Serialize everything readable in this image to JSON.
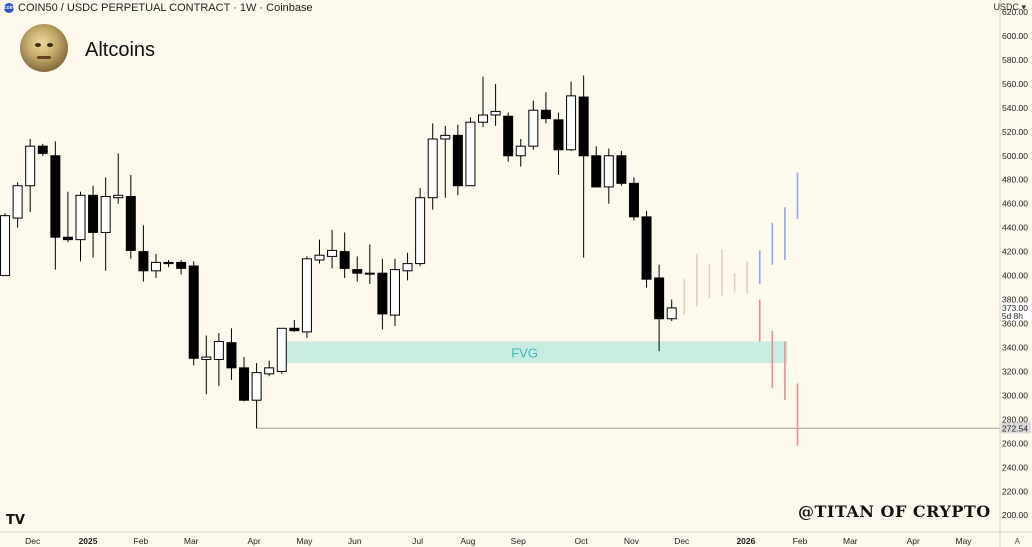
{
  "header": {
    "badge_text": "coin",
    "title": "COIN50 / USDC PERPETUAL CONTRACT · 1W · Coinbase"
  },
  "legend": {
    "group_title": "Altcoins"
  },
  "currency": "USDC",
  "watermark": "@TITAN OF CRYPTO",
  "tv_logo": "TV",
  "auto_label": "A",
  "colors": {
    "background": "#fdf9ec",
    "candle_up_fill": "#ffffff",
    "candle_down_fill": "#000000",
    "candle_border": "#000000",
    "fvg_fill": "#c8ece2",
    "fvg_text": "#3ab8bc",
    "projection_up": "#8fa6e8",
    "projection_down": "#e89090",
    "projection_neutral": "#e0cfc0",
    "support_line": "#999999",
    "current_price_bg": "#ffffff"
  },
  "chart_data": {
    "type": "candlestick",
    "title": "COIN50 / USDC PERPETUAL CONTRACT · 1W · Coinbase",
    "ylabel": "USDC",
    "ylim": [
      186,
      630
    ],
    "y_ticks": [
      200,
      220,
      240,
      260,
      280,
      300,
      320,
      340,
      360,
      380,
      400,
      420,
      440,
      460,
      480,
      500,
      520,
      540,
      560,
      580,
      600,
      620
    ],
    "x_range_weeks": [
      -2,
      77.5
    ],
    "month_labels": [
      {
        "label": "Dec",
        "week": 0.6
      },
      {
        "label": "2025",
        "week": 5.0
      },
      {
        "label": "Feb",
        "week": 9.2
      },
      {
        "label": "Mar",
        "week": 13.2
      },
      {
        "label": "Apr",
        "week": 18.2
      },
      {
        "label": "May",
        "week": 22.2
      },
      {
        "label": "Jun",
        "week": 26.2
      },
      {
        "label": "Jul",
        "week": 31.2
      },
      {
        "label": "Aug",
        "week": 35.2
      },
      {
        "label": "Sep",
        "week": 39.2
      },
      {
        "label": "Oct",
        "week": 44.2
      },
      {
        "label": "Nov",
        "week": 48.2
      },
      {
        "label": "Dec",
        "week": 52.2
      },
      {
        "label": "2026",
        "week": 57.3
      },
      {
        "label": "Feb",
        "week": 61.6
      },
      {
        "label": "Mar",
        "week": 65.6
      },
      {
        "label": "Apr",
        "week": 70.6
      },
      {
        "label": "May",
        "week": 74.6
      }
    ],
    "candles": [
      {
        "w": -1.6,
        "o": 400,
        "h": 452,
        "l": 400,
        "c": 450
      },
      {
        "w": -0.6,
        "o": 448,
        "h": 478,
        "l": 440,
        "c": 475
      },
      {
        "w": 0.4,
        "o": 475,
        "h": 514,
        "l": 453,
        "c": 508
      },
      {
        "w": 1.4,
        "o": 508,
        "h": 510,
        "l": 500,
        "c": 502
      },
      {
        "w": 2.4,
        "o": 500,
        "h": 512,
        "l": 405,
        "c": 432
      },
      {
        "w": 3.4,
        "o": 432,
        "h": 470,
        "l": 428,
        "c": 430
      },
      {
        "w": 4.4,
        "o": 430,
        "h": 470,
        "l": 412,
        "c": 467
      },
      {
        "w": 5.4,
        "o": 467,
        "h": 475,
        "l": 415,
        "c": 436
      },
      {
        "w": 6.4,
        "o": 436,
        "h": 482,
        "l": 404,
        "c": 466
      },
      {
        "w": 7.4,
        "o": 465,
        "h": 502,
        "l": 460,
        "c": 467
      },
      {
        "w": 8.4,
        "o": 466,
        "h": 484,
        "l": 414,
        "c": 421
      },
      {
        "w": 9.4,
        "o": 420,
        "h": 442,
        "l": 395,
        "c": 404
      },
      {
        "w": 10.4,
        "o": 404,
        "h": 418,
        "l": 398,
        "c": 411
      },
      {
        "w": 11.4,
        "o": 411,
        "h": 413,
        "l": 407,
        "c": 410
      },
      {
        "w": 12.4,
        "o": 411,
        "h": 413,
        "l": 401,
        "c": 406
      },
      {
        "w": 13.4,
        "o": 408,
        "h": 412,
        "l": 325,
        "c": 331
      },
      {
        "w": 14.4,
        "o": 330,
        "h": 350,
        "l": 301,
        "c": 332
      },
      {
        "w": 15.4,
        "o": 330,
        "h": 352,
        "l": 308,
        "c": 345
      },
      {
        "w": 16.4,
        "o": 344,
        "h": 356,
        "l": 313,
        "c": 323
      },
      {
        "w": 17.4,
        "o": 323,
        "h": 332,
        "l": 295,
        "c": 296
      },
      {
        "w": 18.4,
        "o": 296,
        "h": 327,
        "l": 272.54,
        "c": 319
      },
      {
        "w": 19.4,
        "o": 318,
        "h": 329,
        "l": 316,
        "c": 323
      },
      {
        "w": 20.4,
        "o": 320,
        "h": 356,
        "l": 318,
        "c": 356
      },
      {
        "w": 21.4,
        "o": 356,
        "h": 363,
        "l": 353,
        "c": 354
      },
      {
        "w": 22.4,
        "o": 353,
        "h": 416,
        "l": 348,
        "c": 414
      },
      {
        "w": 23.4,
        "o": 413,
        "h": 430,
        "l": 410,
        "c": 417
      },
      {
        "w": 24.4,
        "o": 416,
        "h": 438,
        "l": 406,
        "c": 421
      },
      {
        "w": 25.4,
        "o": 420,
        "h": 436,
        "l": 398,
        "c": 406
      },
      {
        "w": 26.4,
        "o": 405,
        "h": 416,
        "l": 395,
        "c": 402
      },
      {
        "w": 27.4,
        "o": 402,
        "h": 426,
        "l": 393,
        "c": 402
      },
      {
        "w": 28.4,
        "o": 402,
        "h": 414,
        "l": 355,
        "c": 368
      },
      {
        "w": 29.4,
        "o": 367,
        "h": 414,
        "l": 358,
        "c": 405
      },
      {
        "w": 30.4,
        "o": 404,
        "h": 419,
        "l": 396,
        "c": 410
      },
      {
        "w": 31.4,
        "o": 410,
        "h": 473,
        "l": 408,
        "c": 465
      },
      {
        "w": 32.4,
        "o": 465,
        "h": 527,
        "l": 455,
        "c": 514
      },
      {
        "w": 33.4,
        "o": 514,
        "h": 525,
        "l": 465,
        "c": 517
      },
      {
        "w": 34.4,
        "o": 517,
        "h": 526,
        "l": 467,
        "c": 475
      },
      {
        "w": 35.4,
        "o": 475,
        "h": 532,
        "l": 475,
        "c": 528
      },
      {
        "w": 36.4,
        "o": 528,
        "h": 566,
        "l": 524,
        "c": 534
      },
      {
        "w": 37.4,
        "o": 534,
        "h": 560,
        "l": 525,
        "c": 537
      },
      {
        "w": 38.4,
        "o": 533,
        "h": 536,
        "l": 495,
        "c": 500
      },
      {
        "w": 39.4,
        "o": 500,
        "h": 514,
        "l": 491,
        "c": 508
      },
      {
        "w": 40.4,
        "o": 508,
        "h": 546,
        "l": 505,
        "c": 538
      },
      {
        "w": 41.4,
        "o": 538,
        "h": 553,
        "l": 527,
        "c": 531
      },
      {
        "w": 42.4,
        "o": 530,
        "h": 536,
        "l": 484,
        "c": 505
      },
      {
        "w": 43.4,
        "o": 505,
        "h": 562,
        "l": 504,
        "c": 550
      },
      {
        "w": 44.4,
        "o": 549,
        "h": 567,
        "l": 415,
        "c": 500
      },
      {
        "w": 45.4,
        "o": 500,
        "h": 508,
        "l": 475,
        "c": 474
      },
      {
        "w": 46.4,
        "o": 474,
        "h": 506,
        "l": 460,
        "c": 500
      },
      {
        "w": 47.4,
        "o": 500,
        "h": 504,
        "l": 475,
        "c": 477
      },
      {
        "w": 48.4,
        "o": 477,
        "h": 482,
        "l": 446,
        "c": 449
      },
      {
        "w": 49.4,
        "o": 449,
        "h": 454,
        "l": 390,
        "c": 397
      },
      {
        "w": 50.4,
        "o": 398,
        "h": 409,
        "l": 337,
        "c": 364
      },
      {
        "w": 51.4,
        "o": 364,
        "h": 380,
        "l": 362,
        "c": 373
      }
    ],
    "projections": [
      {
        "w": 52.4,
        "low": 367,
        "high": 397,
        "kind": "neutral"
      },
      {
        "w": 53.4,
        "low": 374,
        "high": 418,
        "kind": "neutral"
      },
      {
        "w": 54.4,
        "low": 381,
        "high": 410,
        "kind": "neutral"
      },
      {
        "w": 55.4,
        "low": 383,
        "high": 422,
        "kind": "neutral"
      },
      {
        "w": 56.4,
        "low": 386,
        "high": 402,
        "kind": "neutral"
      },
      {
        "w": 57.4,
        "low": 385,
        "high": 412,
        "kind": "neutral"
      },
      {
        "w": 58.4,
        "low": 393,
        "high": 421,
        "kind": "up"
      },
      {
        "w": 59.4,
        "low": 409,
        "high": 444,
        "kind": "up"
      },
      {
        "w": 60.4,
        "low": 413,
        "high": 457,
        "kind": "up"
      },
      {
        "w": 61.4,
        "low": 447,
        "high": 486,
        "kind": "up"
      },
      {
        "w": 58.4,
        "low": 345,
        "high": 380,
        "kind": "down"
      },
      {
        "w": 59.4,
        "low": 306,
        "high": 354,
        "kind": "down"
      },
      {
        "w": 60.4,
        "low": 296,
        "high": 345,
        "kind": "down"
      },
      {
        "w": 61.4,
        "low": 258,
        "high": 310,
        "kind": "down"
      }
    ],
    "fvg_zone": {
      "label": "FVG",
      "top": 345,
      "bottom": 327,
      "start_week": 20.4,
      "end_week": 60.6
    },
    "support_line": {
      "price": 272.54,
      "start_week": 18.4,
      "label": "272.54"
    },
    "current_price": {
      "price": 373.0,
      "label": "373.00",
      "countdown": "5d 8h"
    }
  }
}
